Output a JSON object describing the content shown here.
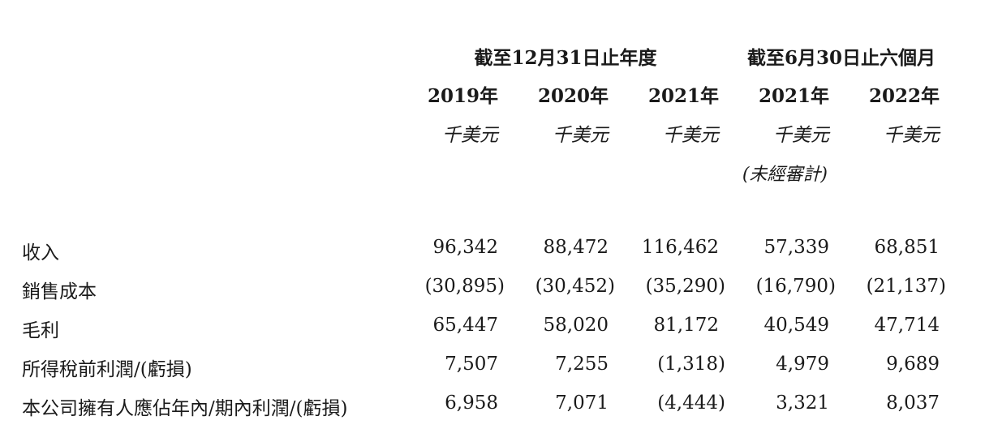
{
  "header": {
    "group_year_end": "截至12月31日止年度",
    "group_six_months": "截至6月30日止六個月",
    "years": [
      "2019年",
      "2020年",
      "2021年",
      "2021年",
      "2022年"
    ],
    "units": [
      "千美元",
      "千美元",
      "千美元",
      "千美元",
      "千美元"
    ],
    "unaudited_note": "(未經審計)"
  },
  "rows": [
    {
      "label": "收入",
      "values": [
        "96,342",
        "88,472",
        "116,462",
        "57,339",
        "68,851"
      ]
    },
    {
      "label": "銷售成本",
      "values": [
        "(30,895)",
        "(30,452)",
        "(35,290)",
        "(16,790)",
        "(21,137)"
      ]
    },
    {
      "label": "毛利",
      "values": [
        "65,447",
        "58,020",
        "81,172",
        "40,549",
        "47,714"
      ]
    },
    {
      "label": "所得稅前利潤/(虧損)",
      "values": [
        "7,507",
        "7,255",
        "(1,318)",
        "4,979",
        "9,689"
      ]
    },
    {
      "label": "本公司擁有人應佔年內/期內利潤/(虧損)",
      "values": [
        "6,958",
        "7,071",
        "(4,444)",
        "3,321",
        "8,037"
      ]
    }
  ]
}
